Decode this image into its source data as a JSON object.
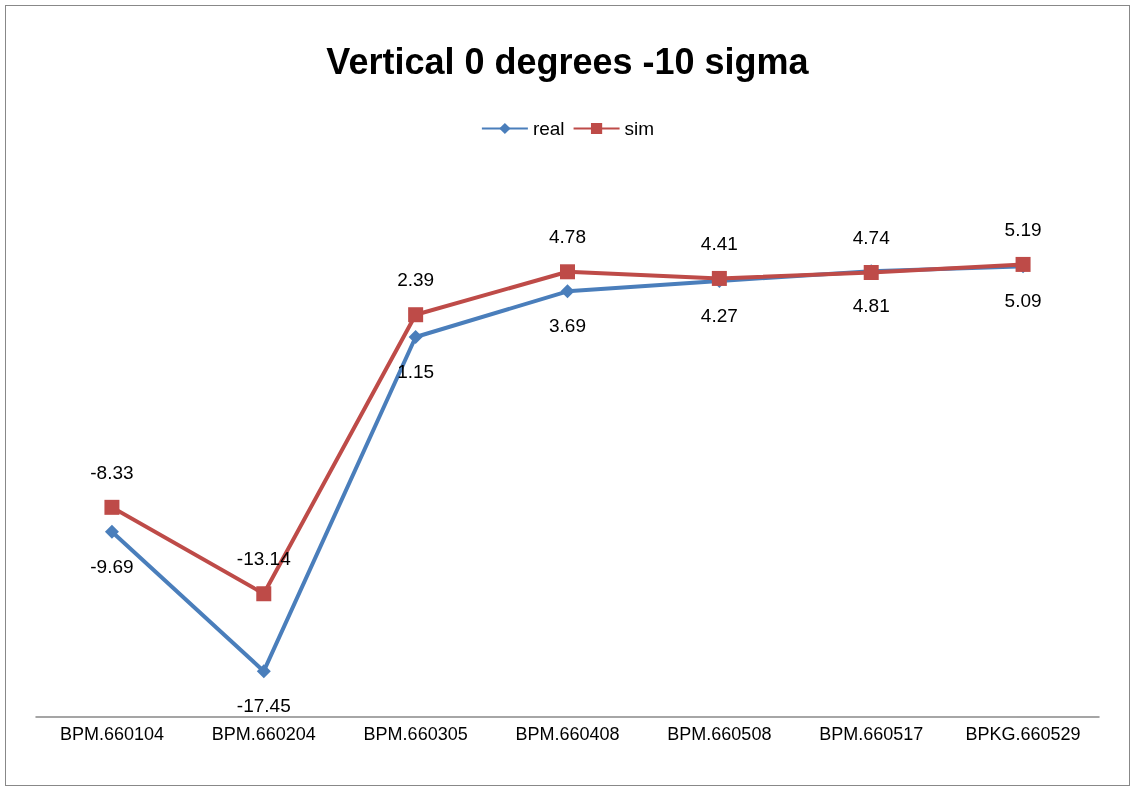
{
  "chart_data": {
    "type": "line",
    "title": "Vertical 0 degrees -10 sigma",
    "categories": [
      "BPM.660104",
      "BPM.660204",
      "BPM.660305",
      "BPM.660408",
      "BPM.660508",
      "BPM.660517",
      "BPKG.660529"
    ],
    "series": [
      {
        "name": "real",
        "color": "#4a7ebb",
        "marker": "diamond",
        "values": [
          -9.69,
          -17.45,
          1.15,
          3.69,
          4.27,
          4.81,
          5.09
        ]
      },
      {
        "name": "sim",
        "color": "#be4b48",
        "marker": "square",
        "values": [
          -8.33,
          -13.14,
          2.39,
          4.78,
          4.41,
          4.74,
          5.19
        ]
      }
    ],
    "data_labels": true,
    "legend": "top"
  }
}
